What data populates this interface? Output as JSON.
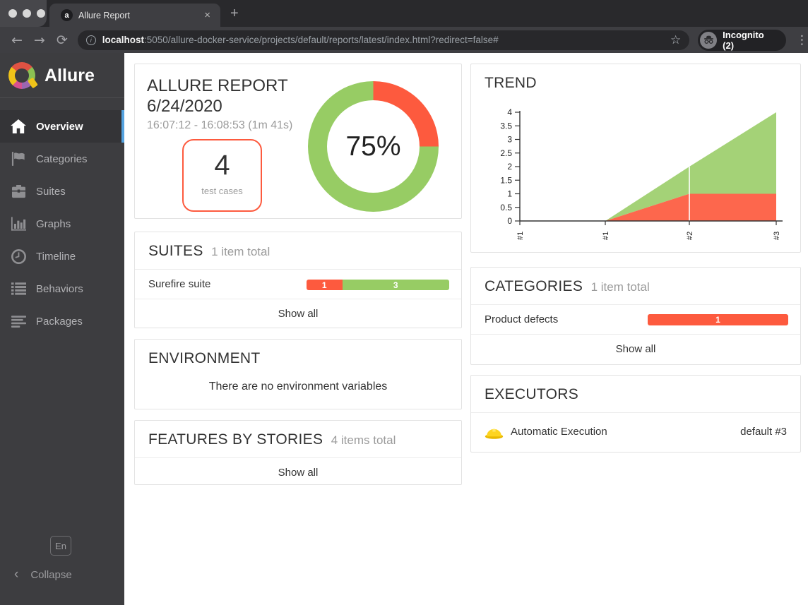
{
  "browser": {
    "tab_title": "Allure Report",
    "tab_close": "×",
    "new_tab": "+",
    "back": "←",
    "forward": "→",
    "refresh": "⟳",
    "info": "i",
    "url_host": "localhost",
    "url_rest": ":5050/allure-docker-service/projects/default/reports/latest/index.html?redirect=false#",
    "star": "☆",
    "incognito_label": "Incognito (2)",
    "menu": "⋮",
    "favicon_glyph": "a"
  },
  "sidebar": {
    "brand": "Allure",
    "items": [
      {
        "id": "overview",
        "label": "Overview",
        "icon": "home",
        "active": true
      },
      {
        "id": "categories",
        "label": "Categories",
        "icon": "flag",
        "active": false
      },
      {
        "id": "suites",
        "label": "Suites",
        "icon": "briefcase",
        "active": false
      },
      {
        "id": "graphs",
        "label": "Graphs",
        "icon": "chart",
        "active": false
      },
      {
        "id": "timeline",
        "label": "Timeline",
        "icon": "clock",
        "active": false
      },
      {
        "id": "behaviors",
        "label": "Behaviors",
        "icon": "list",
        "active": false
      },
      {
        "id": "packages",
        "label": "Packages",
        "icon": "align",
        "active": false
      }
    ],
    "language": "En",
    "collapse_chevron": "‹",
    "collapse_label": "Collapse"
  },
  "cards": {
    "report": {
      "title": "ALLURE REPORT",
      "date": "6/24/2020",
      "duration": "16:07:12 - 16:08:53 (1m 41s)",
      "count": "4",
      "count_label": "test cases",
      "percent_label": "75%"
    },
    "suites": {
      "title": "SUITES",
      "subtitle": "1 item total",
      "rows": [
        {
          "name": "Surefire suite",
          "failed": 1,
          "passed": 3
        }
      ],
      "show_all": "Show all"
    },
    "environment": {
      "title": "ENVIRONMENT",
      "empty_text": "There are no environment variables"
    },
    "features": {
      "title": "FEATURES BY STORIES",
      "subtitle": "4 items total",
      "show_all": "Show all"
    },
    "trend": {
      "title": "TREND"
    },
    "categories": {
      "title": "CATEGORIES",
      "subtitle": "1 item total",
      "rows": [
        {
          "name": "Product defects",
          "failed": 1
        }
      ],
      "show_all": "Show all"
    },
    "executors": {
      "title": "EXECUTORS",
      "rows": [
        {
          "name": "Automatic Execution",
          "build": "default #3"
        }
      ]
    }
  },
  "chart_data": [
    {
      "type": "pie",
      "title": "test result donut",
      "donut": true,
      "center_label": "75%",
      "slices": [
        {
          "name": "failed",
          "value": 1,
          "color": "#fd5a3e"
        },
        {
          "name": "passed",
          "value": 3,
          "color": "#97cc64"
        }
      ],
      "start_angle_deg": 0
    },
    {
      "type": "area",
      "title": "TREND",
      "stacked": true,
      "x": [
        "#1",
        "#1",
        "#2",
        "#3"
      ],
      "series": [
        {
          "name": "failed",
          "values": [
            0,
            0,
            1,
            1
          ],
          "color": "#fd5a3e"
        },
        {
          "name": "passed",
          "values": [
            0,
            0,
            1,
            3
          ],
          "color": "#97cc64"
        }
      ],
      "ylim": [
        0,
        4
      ],
      "yticks": [
        0,
        0.5,
        1,
        1.5,
        2,
        2.5,
        3,
        3.5,
        4
      ],
      "grid": false,
      "legend": "none"
    }
  ],
  "colors": {
    "failed": "#fd5a3e",
    "passed": "#97cc64",
    "accent": "#55a3e0"
  }
}
